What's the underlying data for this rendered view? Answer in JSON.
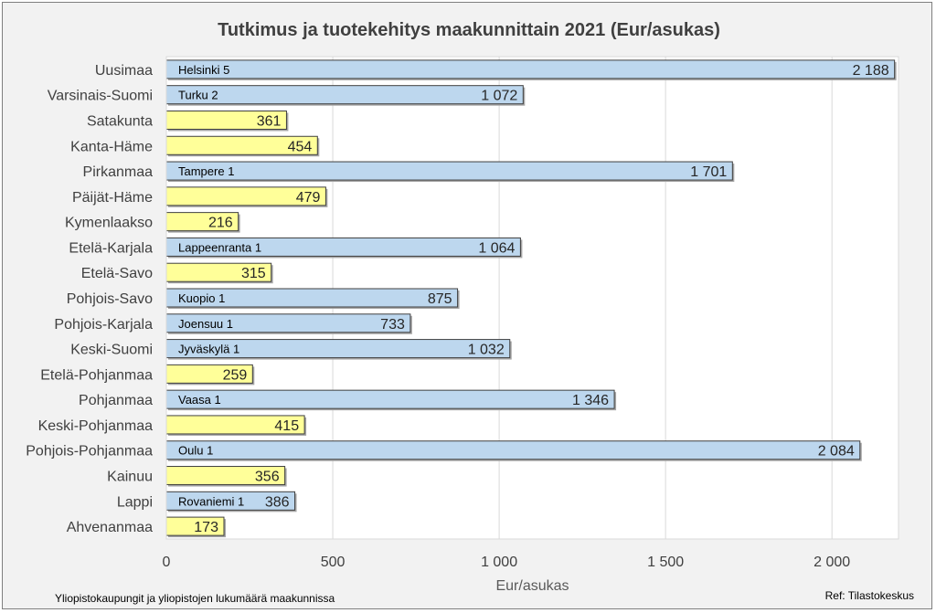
{
  "chart_data": {
    "type": "bar",
    "orientation": "horizontal",
    "title": "Tutkimus ja tuotekehitys maakunnittain 2021 (Eur/asukas)",
    "xlabel": "Eur/asukas",
    "ylabel": "",
    "xlim": [
      0,
      2200
    ],
    "xticks": [
      0,
      500,
      1000,
      1500,
      2000
    ],
    "xtick_labels": [
      "0",
      "500",
      "1 000",
      "1 500",
      "2 000"
    ],
    "grid": "vertical",
    "categories": [
      "Uusimaa",
      "Varsinais-Suomi",
      "Satakunta",
      "Kanta-Häme",
      "Pirkanmaa",
      "Päijät-Häme",
      "Kymenlaakso",
      "Etelä-Karjala",
      "Etelä-Savo",
      "Pohjois-Savo",
      "Pohjois-Karjala",
      "Keski-Suomi",
      "Etelä-Pohjanmaa",
      "Pohjanmaa",
      "Keski-Pohjanmaa",
      "Pohjois-Pohjanmaa",
      "Kainuu",
      "Lappi",
      "Ahvenanmaa"
    ],
    "values": [
      2188,
      1072,
      361,
      454,
      1701,
      479,
      216,
      1064,
      315,
      875,
      733,
      1032,
      259,
      1346,
      415,
      2084,
      356,
      386,
      173
    ],
    "value_labels": [
      "2 188",
      "1 072",
      "361",
      "454",
      "1 701",
      "479",
      "216",
      "1 064",
      "315",
      "875",
      "733",
      "1 032",
      "259",
      "1 346",
      "415",
      "2 084",
      "356",
      "386",
      "173"
    ],
    "inner_labels": [
      "Helsinki 5",
      "Turku 2",
      "",
      "",
      "Tampere 1",
      "",
      "",
      "Lappeenranta 1",
      "",
      "Kuopio 1",
      "Joensuu 1",
      "Jyväskylä 1",
      "",
      "Vaasa 1",
      "",
      "Oulu 1",
      "",
      "Rovaniemi 1",
      ""
    ],
    "colors": {
      "university": "#bdd7ee",
      "no_university": "#ffff99",
      "bar_border": "#404040",
      "grid": "#d9d9d9"
    }
  },
  "footer": {
    "note": "Yliopistokaupungit ja yliopistojen lukumäärä maakunnissa",
    "source": "Ref: Tilastokeskus"
  }
}
